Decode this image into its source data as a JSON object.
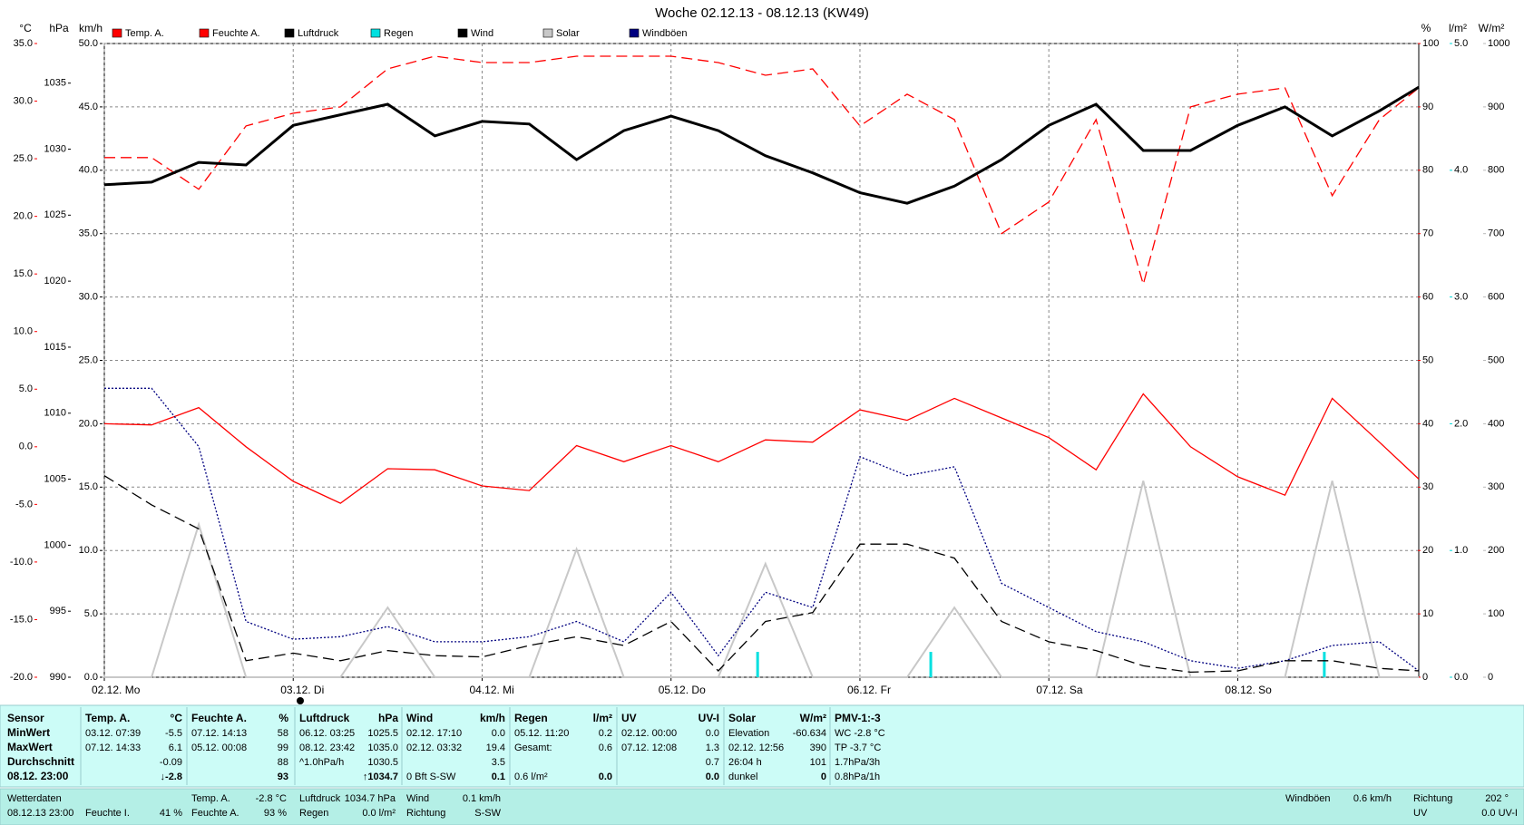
{
  "chart_data": {
    "type": "line",
    "title": "Woche 02.12.13 - 08.12.13 (KW49)",
    "xlim": [
      0,
      167
    ],
    "xticks": [
      {
        "value": 0,
        "label": "02.12. Mo"
      },
      {
        "value": 24,
        "label": "03.12. Di"
      },
      {
        "value": 48,
        "label": "04.12. Mi"
      },
      {
        "value": 72,
        "label": "05.12. Do"
      },
      {
        "value": 96,
        "label": "06.12. Fr"
      },
      {
        "value": 120,
        "label": "07.12. Sa"
      },
      {
        "value": 144,
        "label": "08.12. So"
      }
    ],
    "x": [
      0,
      6,
      12,
      18,
      24,
      30,
      36,
      42,
      48,
      54,
      60,
      66,
      72,
      78,
      84,
      90,
      96,
      102,
      108,
      114,
      120,
      126,
      132,
      138,
      144,
      150,
      156,
      162,
      167
    ],
    "axes": {
      "temp": {
        "label": "°C",
        "color": "#ff0000",
        "lim": [
          -20,
          35
        ],
        "ticks": [
          {
            "value": -20,
            "label": "-20.0"
          },
          {
            "value": -15,
            "label": "-15.0"
          },
          {
            "value": -10,
            "label": "-10.0"
          },
          {
            "value": -5,
            "label": "-5.0"
          },
          {
            "value": 0,
            "label": "0.0"
          },
          {
            "value": 5,
            "label": "5.0"
          },
          {
            "value": 10,
            "label": "10.0"
          },
          {
            "value": 15,
            "label": "15.0"
          },
          {
            "value": 20,
            "label": "20.0"
          },
          {
            "value": 25,
            "label": "25.0"
          },
          {
            "value": 30,
            "label": "30.0"
          },
          {
            "value": 35,
            "label": "35.0"
          }
        ]
      },
      "hpa": {
        "label": "hPa",
        "color": "#000000",
        "lim": [
          990,
          1038
        ],
        "ticks": [
          990,
          995,
          1000,
          1005,
          1010,
          1015,
          1020,
          1025,
          1030,
          1035
        ]
      },
      "kmh": {
        "label": "km/h",
        "color": "#000000",
        "grid": true,
        "lim": [
          0,
          50
        ],
        "ticks": [
          {
            "value": 0,
            "label": "0.0"
          },
          {
            "value": 5,
            "label": "5.0"
          },
          {
            "value": 10,
            "label": "10.0"
          },
          {
            "value": 15,
            "label": "15.0"
          },
          {
            "value": 20,
            "label": "20.0"
          },
          {
            "value": 25,
            "label": "25.0"
          },
          {
            "value": 30,
            "label": "30.0"
          },
          {
            "value": 35,
            "label": "35.0"
          },
          {
            "value": 40,
            "label": "40.0"
          },
          {
            "value": 45,
            "label": "45.0"
          },
          {
            "value": 50,
            "label": "50.0"
          }
        ]
      },
      "pct": {
        "label": "%",
        "color": "#ff0000",
        "lim": [
          0,
          100
        ],
        "ticks": [
          0,
          10,
          20,
          30,
          40,
          50,
          60,
          70,
          80,
          90,
          100
        ]
      },
      "rain": {
        "label": "l/m²",
        "color": "#00d8d8",
        "lim": [
          0,
          5
        ],
        "ticks": [
          {
            "value": 0,
            "label": "0.0"
          },
          {
            "value": 1,
            "label": "1.0"
          },
          {
            "value": 2,
            "label": "2.0"
          },
          {
            "value": 3,
            "label": "3.0"
          },
          {
            "value": 4,
            "label": "4.0"
          },
          {
            "value": 5,
            "label": "5.0"
          }
        ]
      },
      "solar": {
        "label": "W/m²",
        "color": "#b8b8b8",
        "lim": [
          0,
          1000
        ],
        "ticks": [
          0,
          100,
          200,
          300,
          400,
          500,
          600,
          700,
          800,
          900,
          1000
        ]
      }
    },
    "series": [
      {
        "name": "Temp. A.",
        "color": "#ff0000",
        "axis": "temp",
        "values": [
          2.0,
          1.9,
          3.4,
          0.0,
          -3.0,
          -4.9,
          -1.9,
          -2.0,
          -3.4,
          -3.8,
          0.1,
          -1.3,
          0.1,
          -1.3,
          0.6,
          0.4,
          3.2,
          2.3,
          4.2,
          2.5,
          0.8,
          -2.0,
          4.6,
          0.0,
          -2.6,
          -4.2,
          4.2,
          0.4,
          -2.8
        ]
      },
      {
        "name": "Feuchte A.",
        "color": "#ff0000",
        "axis": "pct",
        "dash": "dashed",
        "values": [
          82,
          82,
          77,
          87,
          89,
          90,
          96,
          98,
          97,
          97,
          98,
          98,
          98,
          97,
          95,
          96,
          87,
          92,
          88,
          70,
          75,
          88,
          62,
          90,
          92,
          93,
          76,
          88,
          93
        ]
      },
      {
        "name": "Luftdruck",
        "color": "#000000",
        "axis": "hpa",
        "width": 3,
        "values": [
          1027.3,
          1027.5,
          1029.0,
          1028.8,
          1031.8,
          1032.6,
          1033.4,
          1031.0,
          1032.1,
          1031.9,
          1029.2,
          1031.4,
          1032.5,
          1031.4,
          1029.5,
          1028.2,
          1026.7,
          1025.9,
          1027.2,
          1029.2,
          1031.8,
          1033.4,
          1029.9,
          1029.9,
          1031.8,
          1033.2,
          1031.0,
          1032.9,
          1034.7
        ]
      },
      {
        "name": "Regen",
        "color": "#00e0e0",
        "axis": "rain",
        "type": "bar",
        "x": [
          83,
          105,
          155
        ],
        "values": [
          0.2,
          0.2,
          0.2
        ]
      },
      {
        "name": "Wind",
        "color": "#000000",
        "axis": "kmh",
        "dash": "dashed",
        "values": [
          15.9,
          13.6,
          11.7,
          1.3,
          1.9,
          1.3,
          2.1,
          1.7,
          1.6,
          2.5,
          3.2,
          2.5,
          4.4,
          0.5,
          4.4,
          5.1,
          10.5,
          10.5,
          9.4,
          4.4,
          2.8,
          2.1,
          0.9,
          0.4,
          0.5,
          1.3,
          1.3,
          0.7,
          0.5
        ]
      },
      {
        "name": "Solar",
        "color": "#c8c8c8",
        "axis": "solar",
        "width": 2,
        "values": [
          0,
          0,
          241,
          0,
          0,
          0,
          110,
          0,
          0,
          0,
          202,
          0,
          0,
          0,
          179,
          0,
          0,
          0,
          110,
          0,
          0,
          0,
          310,
          0,
          0,
          0,
          310,
          0,
          0
        ]
      },
      {
        "name": "Windböen",
        "color": "#000080",
        "axis": "kmh",
        "dash": "dotted",
        "values": [
          22.8,
          22.8,
          18.2,
          4.4,
          3.0,
          3.2,
          4.0,
          2.8,
          2.8,
          3.2,
          4.4,
          2.8,
          6.7,
          1.7,
          6.7,
          5.5,
          17.4,
          15.9,
          16.6,
          7.4,
          5.5,
          3.6,
          2.8,
          1.3,
          0.7,
          1.3,
          2.5,
          2.8,
          0.5
        ]
      }
    ]
  },
  "stats": {
    "sensor": {
      "header": "Sensor",
      "rows": [
        "MinWert",
        "MaxWert",
        "Durchschnitt",
        "08.12. 23:00"
      ]
    },
    "columns": [
      {
        "header": [
          "Temp. A.",
          "°C"
        ],
        "min": [
          "03.12.  07:39",
          "-5.5"
        ],
        "max": [
          "07.12.  14:33",
          "6.1"
        ],
        "avg": [
          "-0.09"
        ],
        "now": [
          "↓-2.8"
        ]
      },
      {
        "header": [
          "Feuchte A.",
          "%"
        ],
        "min": [
          "07.12.  14:13",
          "58"
        ],
        "max": [
          "05.12.  00:08",
          "99"
        ],
        "avg": [
          "88"
        ],
        "now": [
          "93"
        ]
      },
      {
        "header": [
          "Luftdruck",
          "hPa"
        ],
        "min": [
          "06.12.  03:25",
          "1025.5"
        ],
        "max": [
          "08.12.  23:42",
          "1035.0"
        ],
        "avg": [
          "^1.0hPa/h",
          "1030.5"
        ],
        "now": [
          "↑1034.7"
        ]
      },
      {
        "header": [
          "Wind",
          "km/h"
        ],
        "min": [
          "02.12.  17:10",
          "0.0"
        ],
        "max": [
          "02.12.  03:32",
          "19.4"
        ],
        "avg": [
          "3.5"
        ],
        "now": [
          "0 Bft S-SW",
          "0.1"
        ]
      },
      {
        "header": [
          "Regen",
          "l/m²"
        ],
        "min": [
          "05.12.  11:20",
          "0.2"
        ],
        "max": [
          "Gesamt:",
          "0.6"
        ],
        "now": [
          "0.6 l/m²",
          "0.0"
        ]
      },
      {
        "header": [
          "UV",
          "UV-I"
        ],
        "min": [
          "02.12.  00:00",
          "0.0"
        ],
        "max": [
          "07.12.  12:08",
          "1.3"
        ],
        "avg": [
          "0.7"
        ],
        "now": [
          "0.0"
        ]
      },
      {
        "header": [
          "Solar",
          "W/m²"
        ],
        "min": [
          "Elevation",
          "-60.634"
        ],
        "max": [
          "02.12.  12:56",
          "390"
        ],
        "avg": [
          "26:04 h",
          "101"
        ],
        "now": [
          "dunkel",
          "0"
        ]
      },
      {
        "header": [
          "PMV-1:-3"
        ],
        "min": [
          "WC -2.8 °C"
        ],
        "max": [
          "TP -3.7 °C"
        ],
        "avg": [
          "1.7hPa/3h"
        ],
        "now": [
          "0.8hPa/1h"
        ]
      }
    ]
  },
  "footer": {
    "items": [
      {
        "label": "Wetterdaten",
        "value": "08.12.13 23:00"
      },
      {
        "label": "Feuchte I.",
        "value": "41 %"
      },
      {
        "label": "Temp. A.",
        "value": "-2.8 °C"
      },
      {
        "label": "Feuchte A.",
        "value": "93 %"
      },
      {
        "label": "Luftdruck",
        "value": "1034.7 hPa"
      },
      {
        "label": "Regen",
        "value": "0.0 l/m²"
      },
      {
        "label": "Wind",
        "value": "0.1 km/h"
      },
      {
        "label": "Richtung",
        "value": "S-SW"
      },
      {
        "label": "Windböen",
        "value": "0.6 km/h"
      },
      {
        "label": "Richtung",
        "value": "202 °"
      },
      {
        "label": "UV",
        "value": "0.0 UV-I"
      }
    ]
  }
}
